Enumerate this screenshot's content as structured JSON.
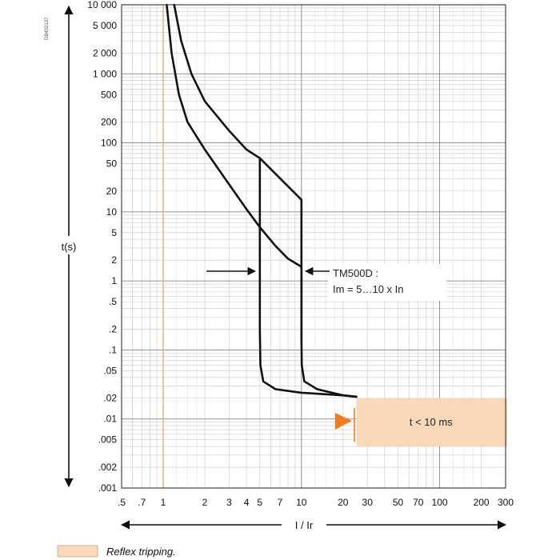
{
  "chart_data": {
    "type": "line",
    "code": "DB402137",
    "xlabel": "I / Ir",
    "ylabel": "t(s)",
    "x_scale": "log",
    "y_scale": "log",
    "xlim": [
      0.5,
      300
    ],
    "ylim": [
      0.001,
      10000
    ],
    "grid": true,
    "x_ticks": [
      {
        "value": 0.5,
        "label": ".5"
      },
      {
        "value": 0.7,
        "label": ".7"
      },
      {
        "value": 1,
        "label": "1"
      },
      {
        "value": 2,
        "label": "2"
      },
      {
        "value": 3,
        "label": "3"
      },
      {
        "value": 4,
        "label": "4"
      },
      {
        "value": 5,
        "label": "5"
      },
      {
        "value": 7,
        "label": "7"
      },
      {
        "value": 10,
        "label": "10"
      },
      {
        "value": 20,
        "label": "20"
      },
      {
        "value": 30,
        "label": "30"
      },
      {
        "value": 50,
        "label": "50"
      },
      {
        "value": 70,
        "label": "70"
      },
      {
        "value": 100,
        "label": "100"
      },
      {
        "value": 200,
        "label": "200"
      },
      {
        "value": 300,
        "label": "300"
      }
    ],
    "y_ticks": [
      {
        "value": 10000,
        "label": "10 000"
      },
      {
        "value": 5000,
        "label": "5 000"
      },
      {
        "value": 2000,
        "label": "2 000"
      },
      {
        "value": 1000,
        "label": "1 000"
      },
      {
        "value": 500,
        "label": "500"
      },
      {
        "value": 200,
        "label": "200"
      },
      {
        "value": 100,
        "label": "100"
      },
      {
        "value": 50,
        "label": "50"
      },
      {
        "value": 20,
        "label": "20"
      },
      {
        "value": 10,
        "label": "10"
      },
      {
        "value": 5,
        "label": "5"
      },
      {
        "value": 2,
        "label": "2"
      },
      {
        "value": 1,
        "label": "1"
      },
      {
        "value": 0.5,
        "label": ".5"
      },
      {
        "value": 0.2,
        "label": ".2"
      },
      {
        "value": 0.1,
        "label": ".1"
      },
      {
        "value": 0.05,
        "label": ".05"
      },
      {
        "value": 0.02,
        "label": ".02"
      },
      {
        "value": 0.01,
        "label": ".01"
      },
      {
        "value": 0.005,
        "label": ".005"
      },
      {
        "value": 0.002,
        "label": ".002"
      },
      {
        "value": 0.001,
        "label": ".001"
      }
    ],
    "series": [
      {
        "color": "#111111",
        "points": [
          [
            1.06,
            10000
          ],
          [
            1.15,
            2000
          ],
          [
            1.3,
            500
          ],
          [
            1.5,
            200
          ],
          [
            2,
            80
          ],
          [
            3,
            25
          ],
          [
            4,
            11
          ],
          [
            5,
            6
          ],
          [
            6.5,
            3.2
          ],
          [
            8,
            2.1
          ],
          [
            10,
            1.6
          ],
          [
            10,
            0.15
          ],
          [
            10.05,
            0.06
          ],
          [
            10.5,
            0.035
          ],
          [
            13,
            0.027
          ],
          [
            20,
            0.022
          ],
          [
            25,
            0.021
          ]
        ]
      },
      {
        "color": "#111111",
        "points": [
          [
            1.2,
            10000
          ],
          [
            1.35,
            3000
          ],
          [
            1.6,
            1000
          ],
          [
            2,
            400
          ],
          [
            3,
            150
          ],
          [
            4,
            80
          ],
          [
            5,
            60
          ],
          [
            10,
            15
          ],
          [
            10,
            0.15
          ]
        ]
      },
      {
        "color": "#111111",
        "points": [
          [
            5,
            60
          ],
          [
            5,
            0.2
          ],
          [
            5.05,
            0.06
          ],
          [
            5.3,
            0.035
          ],
          [
            6.5,
            0.027
          ],
          [
            10,
            0.024
          ],
          [
            20,
            0.022
          ],
          [
            25,
            0.021
          ]
        ]
      }
    ],
    "annotations": [
      {
        "id": "tm500d",
        "lines": [
          "TM500D :",
          "Im = 5…10 x In"
        ]
      },
      {
        "id": "reflex",
        "text": "t < 10 ms",
        "x_from": 25,
        "x_to": 300,
        "y_from": 0.004,
        "y_to": 0.02,
        "color": "#f9d9b9"
      }
    ],
    "reference_line": {
      "x": 1,
      "color": "#e8a870"
    },
    "legend": {
      "label": "Reflex tripping.",
      "color": "#f9d9b9"
    }
  }
}
